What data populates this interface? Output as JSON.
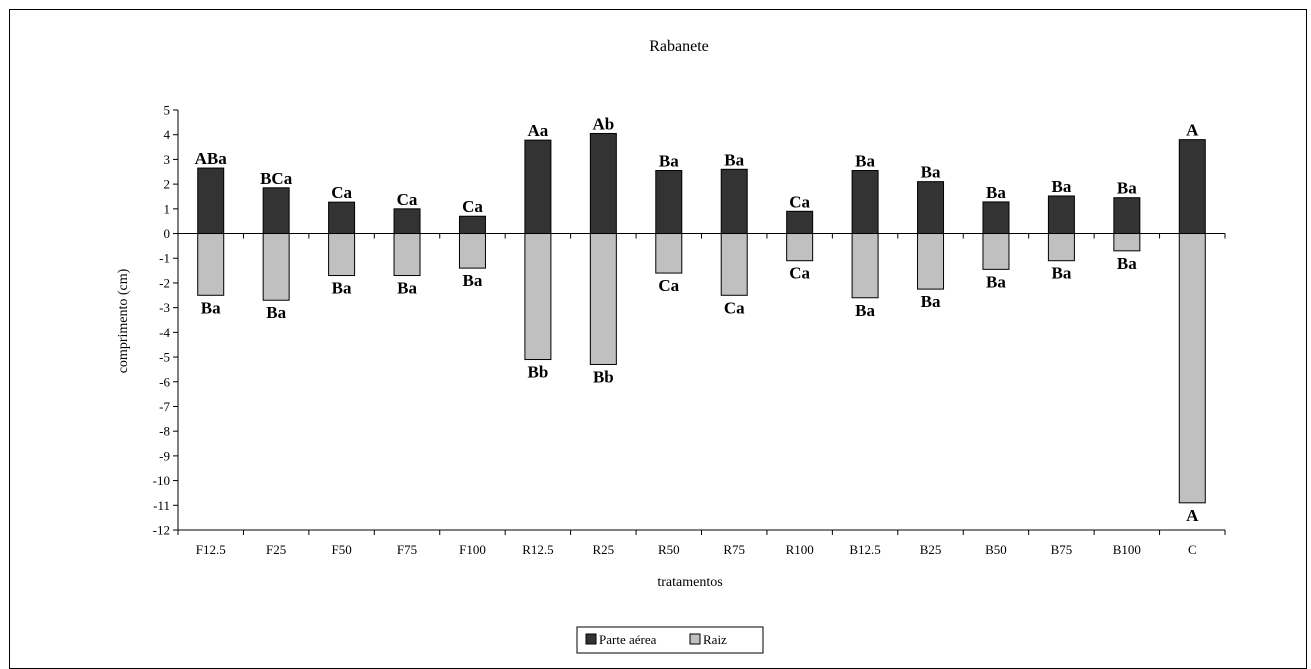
{
  "chart_data": {
    "type": "bar",
    "title": "Rabanete",
    "xlabel": "tratamentos",
    "ylabel": "comprimento (cm)",
    "ylim": [
      -12,
      5
    ],
    "yticks": [
      "5",
      "4",
      "3",
      "2",
      "1",
      "0",
      "-1",
      "-2",
      "-3",
      "-4",
      "-5",
      "-6",
      "-7",
      "-8",
      "-9",
      "-10",
      "-11",
      "-12"
    ],
    "categories": [
      "F12.5",
      "F25",
      "F50",
      "F75",
      "F100",
      "R12.5",
      "R25",
      "R50",
      "R75",
      "R100",
      "B12.5",
      "B25",
      "B50",
      "B75",
      "B100",
      "C"
    ],
    "series": [
      {
        "name": "Parte aérea",
        "color": "#333333",
        "values": [
          2.65,
          1.85,
          1.27,
          1.0,
          0.7,
          3.78,
          4.05,
          2.55,
          2.6,
          0.9,
          2.55,
          2.1,
          1.28,
          1.52,
          1.45,
          3.8
        ],
        "labels": [
          "ABa",
          "BCa",
          "Ca",
          "Ca",
          "Ca",
          "Aa",
          "Ab",
          "Ba",
          "Ba",
          "Ca",
          "Ba",
          "Ba",
          "Ba",
          "Ba",
          "Ba",
          "A"
        ]
      },
      {
        "name": "Raiz",
        "color": "#c0c0c0",
        "values": [
          -2.5,
          -2.7,
          -1.7,
          -1.7,
          -1.4,
          -5.1,
          -5.3,
          -1.6,
          -2.5,
          -1.1,
          -2.6,
          -2.25,
          -1.45,
          -1.1,
          -0.7,
          -10.9
        ],
        "labels": [
          "Ba",
          "Ba",
          "Ba",
          "Ba",
          "Ba",
          "Bb",
          "Bb",
          "Ca",
          "Ca",
          "Ca",
          "Ba",
          "Ba",
          "Ba",
          "Ba",
          "Ba",
          "A"
        ]
      }
    ],
    "legend": {
      "position": "bottom-center"
    }
  }
}
